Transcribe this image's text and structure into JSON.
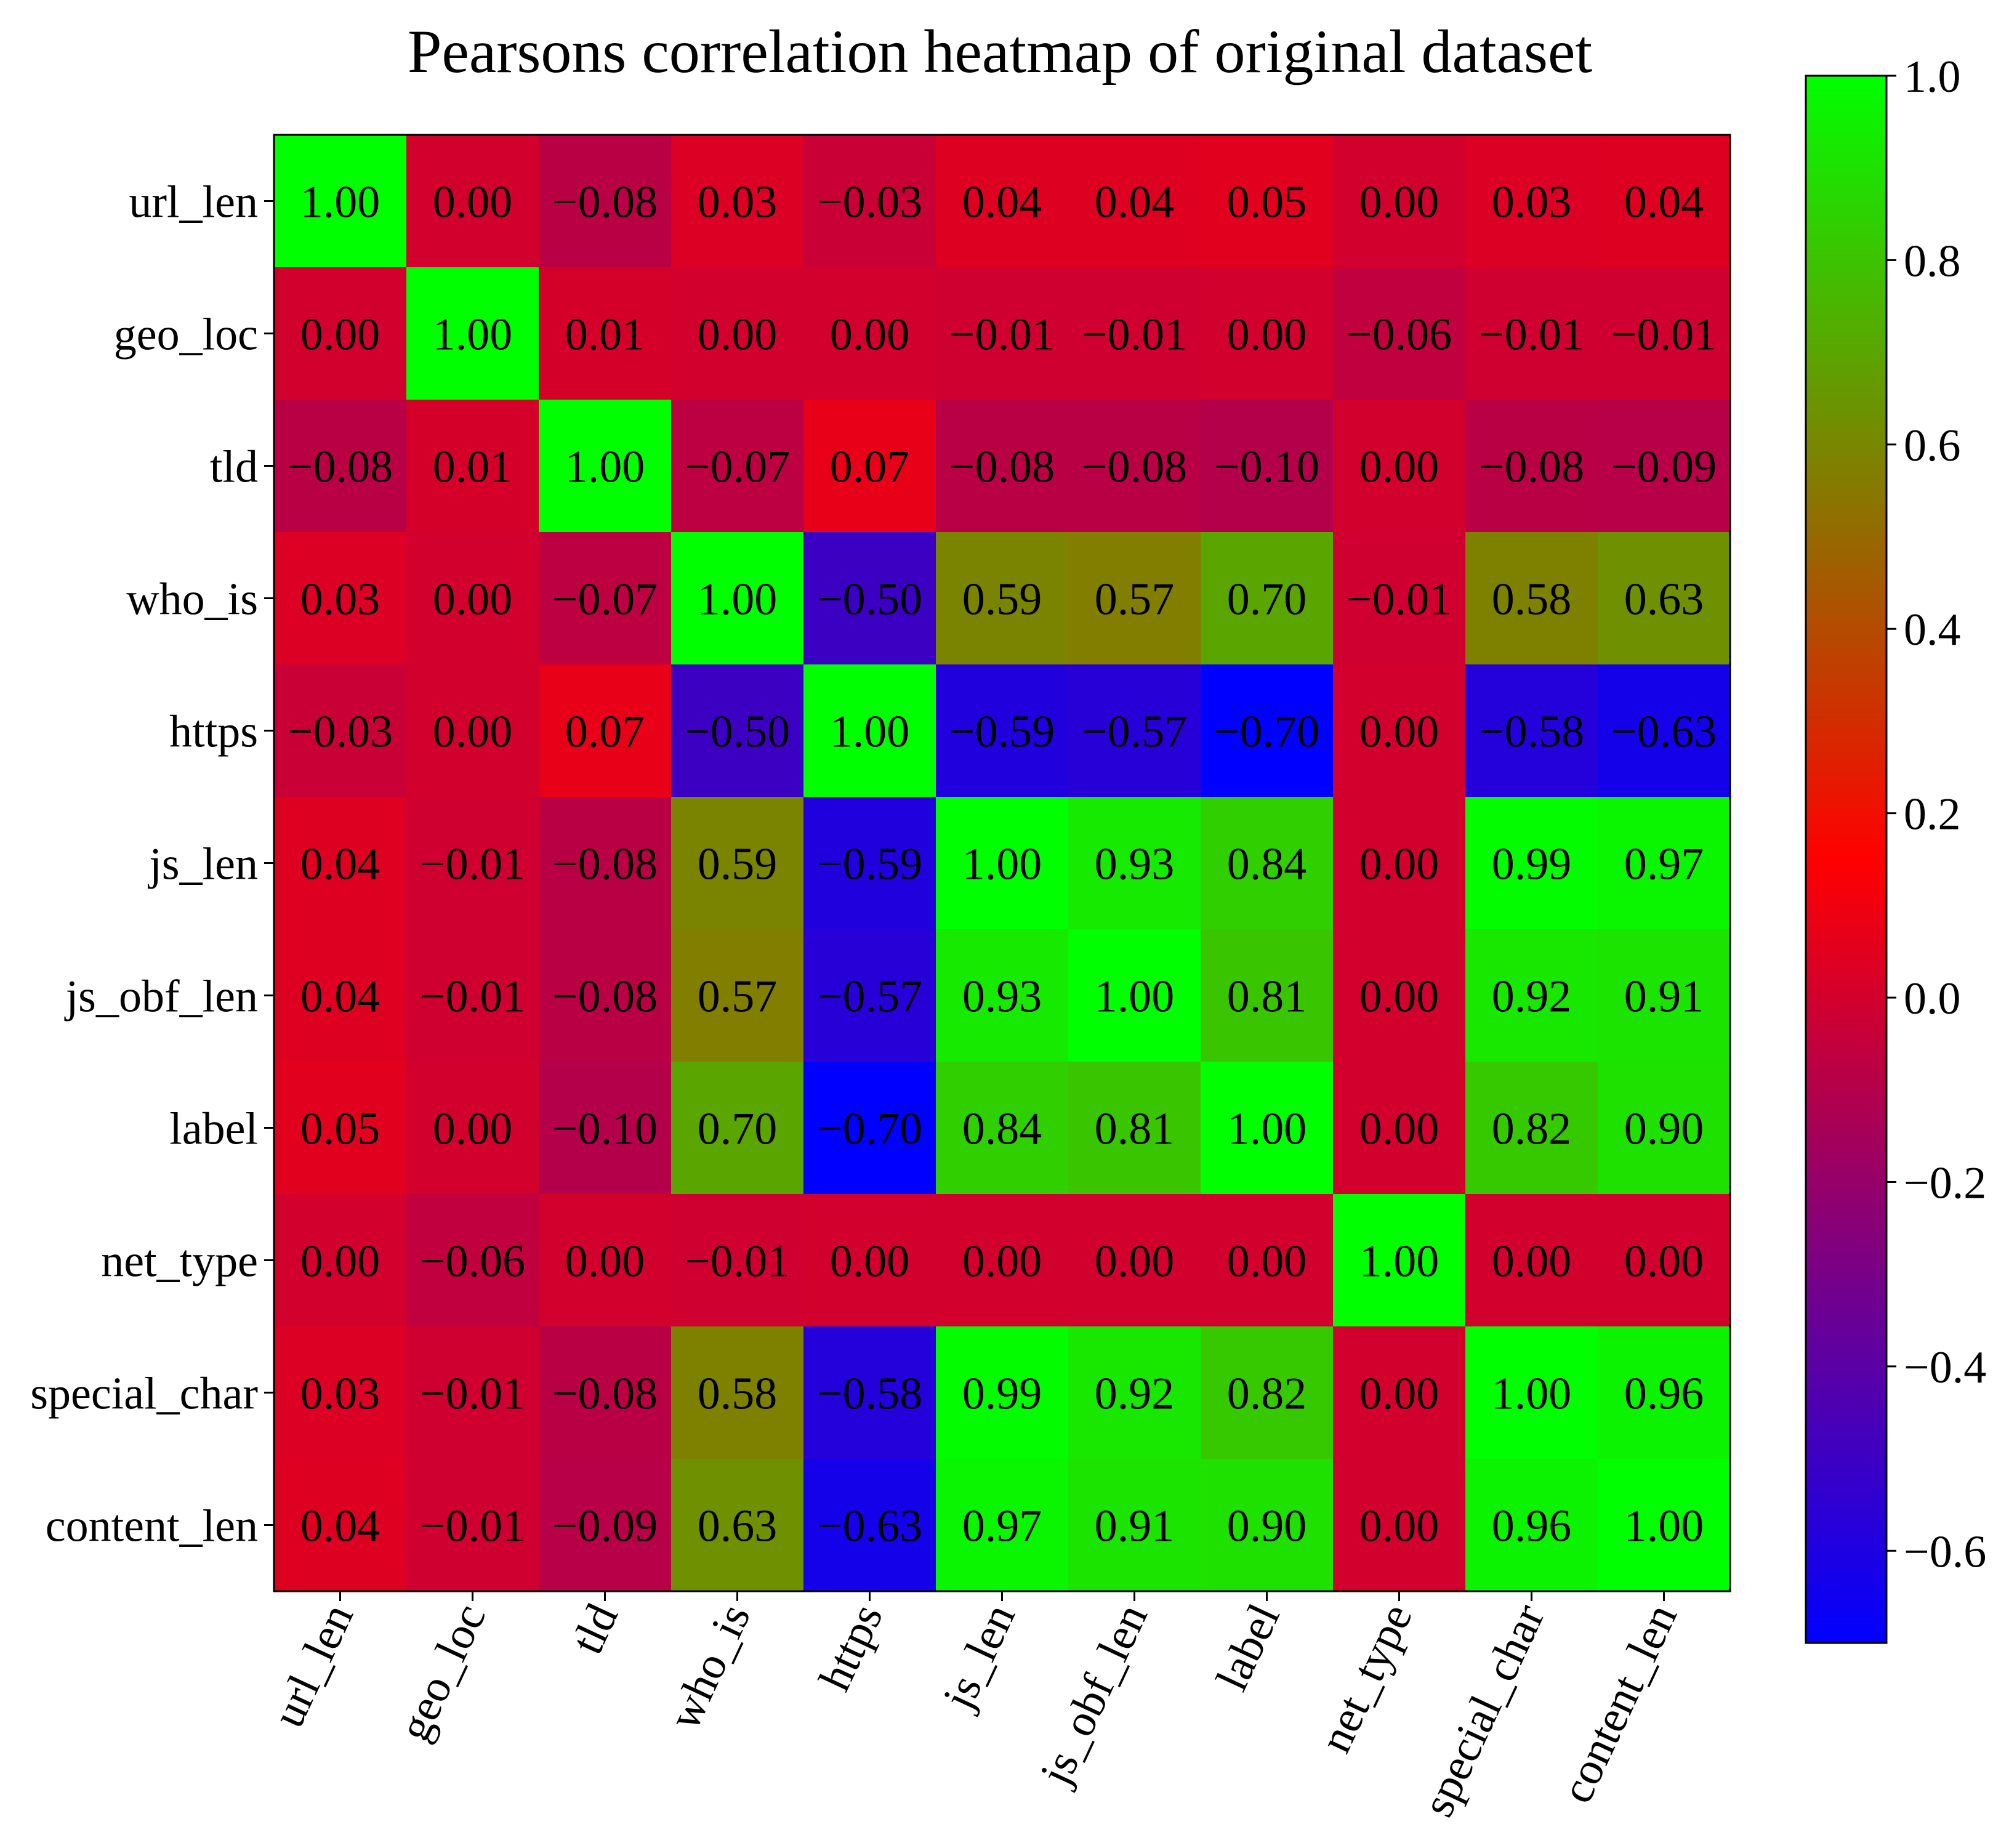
{
  "chart_data": {
    "type": "heatmap",
    "title": "Pearsons correlation heatmap of original dataset",
    "xlabel": "",
    "ylabel": "",
    "labels": [
      "url_len",
      "geo_loc",
      "tld",
      "who_is",
      "https",
      "js_len",
      "js_obf_len",
      "label",
      "net_type",
      "special_char",
      "content_len"
    ],
    "values": [
      [
        1.0,
        0.0,
        -0.08,
        0.03,
        -0.03,
        0.04,
        0.04,
        0.05,
        0.0,
        0.03,
        0.04
      ],
      [
        0.0,
        1.0,
        0.01,
        0.0,
        0.0,
        -0.01,
        -0.01,
        0.0,
        -0.06,
        -0.01,
        -0.01
      ],
      [
        -0.08,
        0.01,
        1.0,
        -0.07,
        0.07,
        -0.08,
        -0.08,
        -0.1,
        0.0,
        -0.08,
        -0.09
      ],
      [
        0.03,
        0.0,
        -0.07,
        1.0,
        -0.5,
        0.59,
        0.57,
        0.7,
        -0.01,
        0.58,
        0.63
      ],
      [
        -0.03,
        0.0,
        0.07,
        -0.5,
        1.0,
        -0.59,
        -0.57,
        -0.7,
        0.0,
        -0.58,
        -0.63
      ],
      [
        0.04,
        -0.01,
        -0.08,
        0.59,
        -0.59,
        1.0,
        0.93,
        0.84,
        0.0,
        0.99,
        0.97
      ],
      [
        0.04,
        -0.01,
        -0.08,
        0.57,
        -0.57,
        0.93,
        1.0,
        0.81,
        0.0,
        0.92,
        0.91
      ],
      [
        0.05,
        0.0,
        -0.1,
        0.7,
        -0.7,
        0.84,
        0.81,
        1.0,
        0.0,
        0.82,
        0.9
      ],
      [
        0.0,
        -0.06,
        0.0,
        -0.01,
        0.0,
        0.0,
        0.0,
        0.0,
        1.0,
        0.0,
        0.0
      ],
      [
        0.03,
        -0.01,
        -0.08,
        0.58,
        -0.58,
        0.99,
        0.92,
        0.82,
        0.0,
        1.0,
        0.96
      ],
      [
        0.04,
        -0.01,
        -0.09,
        0.63,
        -0.63,
        0.97,
        0.91,
        0.9,
        0.0,
        0.96,
        1.0
      ]
    ],
    "value_format": "2 decimals",
    "colormap": {
      "vmin": -0.7,
      "vmax": 1.0,
      "stops": [
        {
          "value": -0.7,
          "color": "#0000ff"
        },
        {
          "value": 0.15,
          "color": "#ff0000"
        },
        {
          "value": 1.0,
          "color": "#00ff00"
        }
      ]
    },
    "colorbar": {
      "ticks": [
        -0.6,
        -0.4,
        -0.2,
        0.0,
        0.2,
        0.4,
        0.6,
        0.8,
        1.0
      ],
      "tick_labels": [
        "−0.6",
        "−0.4",
        "−0.2",
        "0.0",
        "0.2",
        "0.4",
        "0.6",
        "0.8",
        "1.0"
      ],
      "placement": "right"
    },
    "x_tick_rotation_deg": 65,
    "grid": false
  }
}
